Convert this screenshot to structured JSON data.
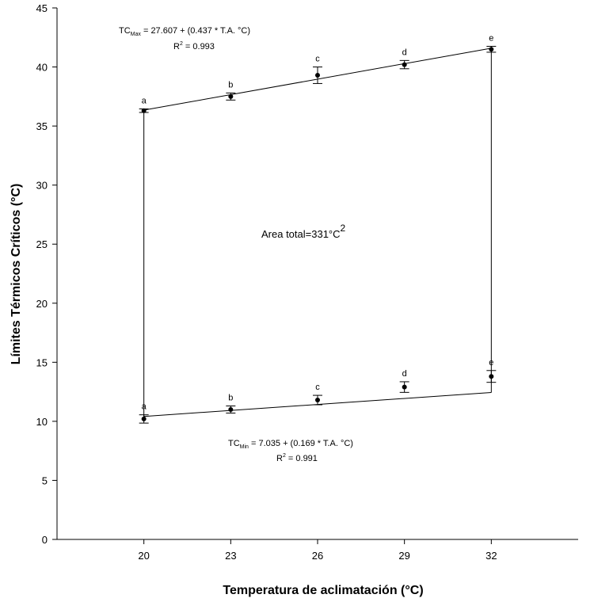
{
  "chart_data": {
    "type": "scatter",
    "xlabel": "Temperatura de aclimatación (°C)",
    "ylabel": "Límites Térmicos Críticos (°C)",
    "xticks": [
      20,
      23,
      26,
      29,
      32
    ],
    "xlim": [
      17,
      35
    ],
    "ylim": [
      0,
      45
    ],
    "yticks": [
      0,
      5,
      10,
      15,
      20,
      25,
      30,
      35,
      40,
      45
    ],
    "series": [
      {
        "key": "max",
        "x": [
          20,
          23,
          26,
          29,
          32
        ],
        "y": [
          36.3,
          37.5,
          39.3,
          40.2,
          41.5
        ],
        "err": [
          0.15,
          0.3,
          0.7,
          0.35,
          0.25
        ],
        "letters": [
          "a",
          "b",
          "c",
          "d",
          "e"
        ],
        "fit": {
          "intercept": 27.607,
          "slope": 0.437
        }
      },
      {
        "key": "min",
        "x": [
          20,
          23,
          26,
          29,
          32
        ],
        "y": [
          10.2,
          11.0,
          11.8,
          12.9,
          13.8
        ],
        "err": [
          0.35,
          0.3,
          0.4,
          0.45,
          0.5
        ],
        "letters": [
          "a",
          "b",
          "c",
          "d",
          "e"
        ],
        "fit": {
          "intercept": 7.035,
          "slope": 0.169
        }
      }
    ],
    "annotations": {
      "max_eq_prefix": "TC",
      "max_eq_sub": "Max",
      "max_eq_rest": " = 27.607 + (0.437 * T.A. °C)",
      "max_r2_prefix": "R",
      "max_r2_sup": "2",
      "max_r2_rest": " = 0.993",
      "min_eq_prefix": "TC",
      "min_eq_sub": "Min",
      "min_eq_rest": " = 7.035 + (0.169 * T.A. °C)",
      "min_r2_prefix": "R",
      "min_r2_sup": "2",
      "min_r2_rest": " = 0.991",
      "area_text": "Area total=331°C",
      "area_sup": "2"
    },
    "colors": {
      "ink": "#000000",
      "background": "#ffffff"
    }
  }
}
